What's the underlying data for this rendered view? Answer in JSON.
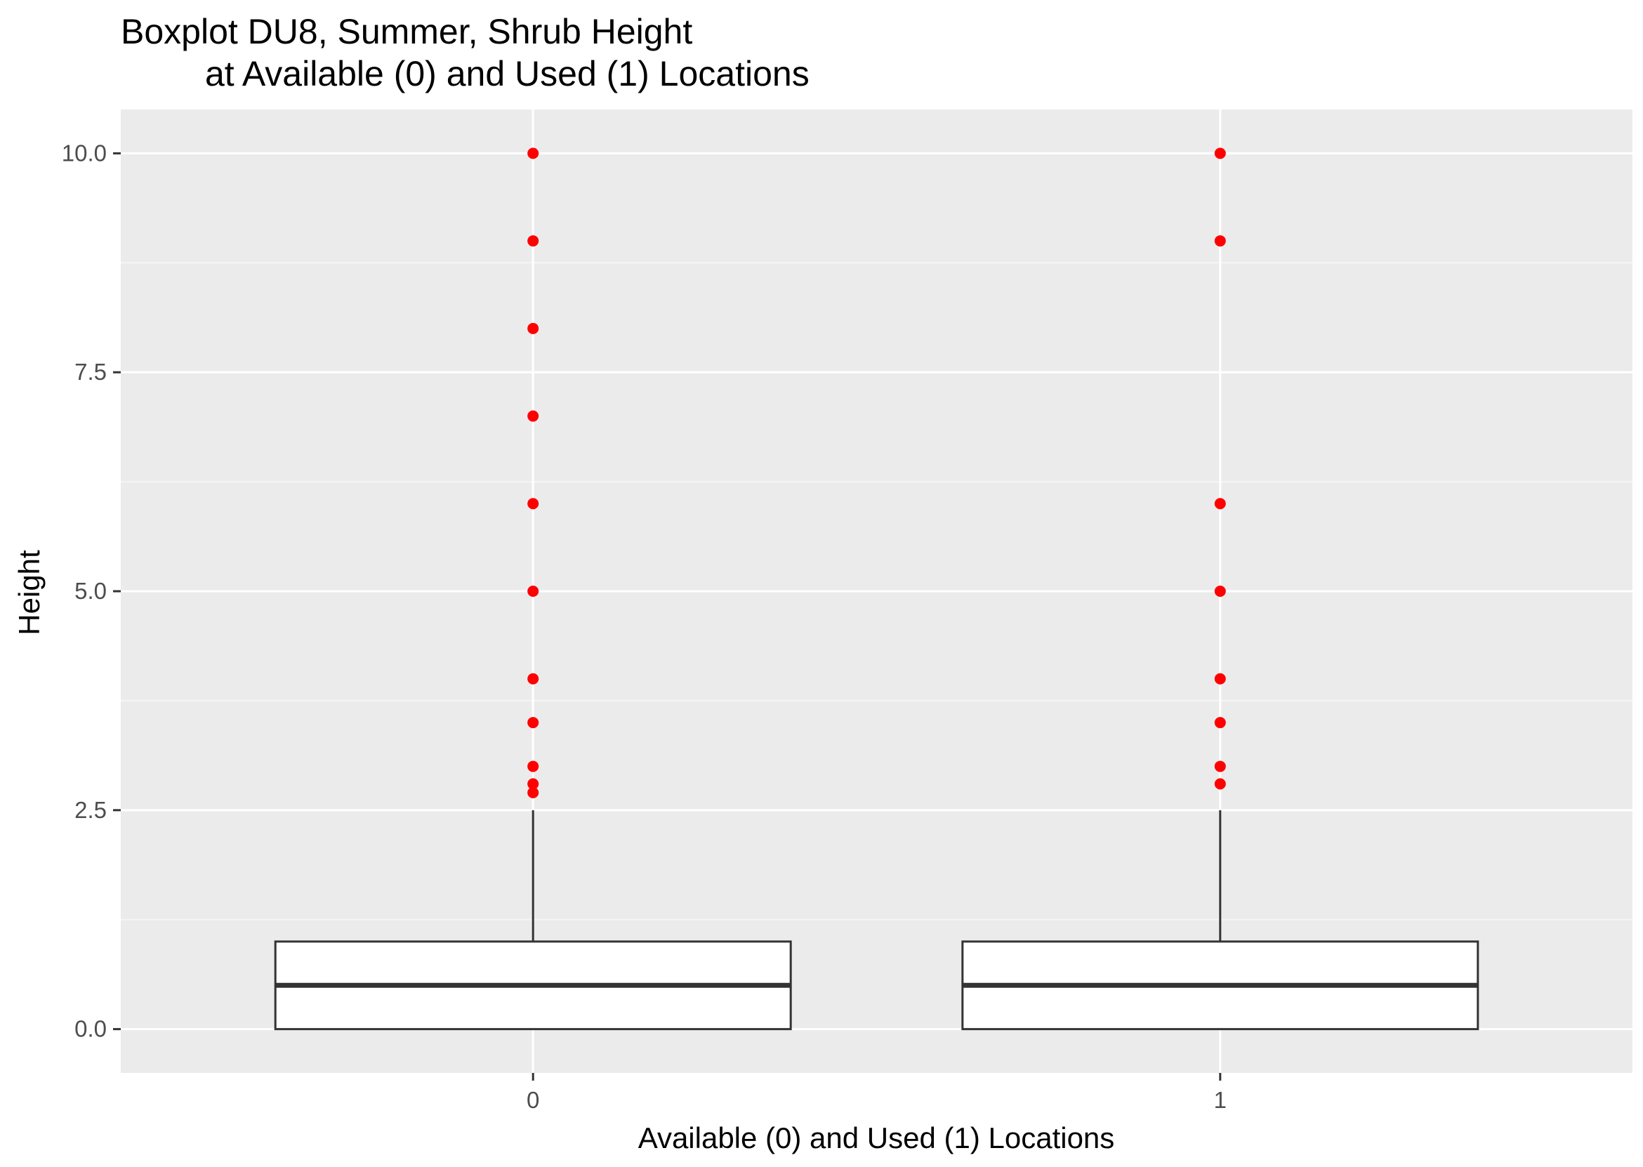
{
  "chart_data": {
    "type": "boxplot",
    "title": "Boxplot DU8, Summer, Shrub Height",
    "subtitle": "at Available (0) and Used (1) Locations",
    "xlabel": "Available (0) and Used (1) Locations",
    "ylabel": "Height",
    "categories": [
      "0",
      "1"
    ],
    "ylim": [
      -0.5,
      10.5
    ],
    "yticks": [
      0.0,
      2.5,
      5.0,
      7.5,
      10.0
    ],
    "ytick_labels": [
      "0.0",
      "2.5",
      "5.0",
      "7.5",
      "10.0"
    ],
    "grid": true,
    "boxes": [
      {
        "category": "0",
        "q1": 0.0,
        "median": 0.5,
        "q3": 1.0,
        "whisker_low": 0.0,
        "whisker_high": 2.5,
        "outliers": [
          2.7,
          2.8,
          3.0,
          3.5,
          4.0,
          5.0,
          6.0,
          7.0,
          8.0,
          9.0,
          10.0
        ]
      },
      {
        "category": "1",
        "q1": 0.0,
        "median": 0.5,
        "q3": 1.0,
        "whisker_low": 0.0,
        "whisker_high": 2.5,
        "outliers": [
          2.8,
          3.0,
          3.5,
          4.0,
          5.0,
          6.0,
          9.0,
          10.0
        ]
      }
    ],
    "colors": {
      "panel_background": "#ebebeb",
      "grid_major": "#ffffff",
      "grid_minor": "#f5f5f5",
      "box_fill": "#ffffff",
      "box_stroke": "#333333",
      "outlier": "#ff0000"
    }
  }
}
